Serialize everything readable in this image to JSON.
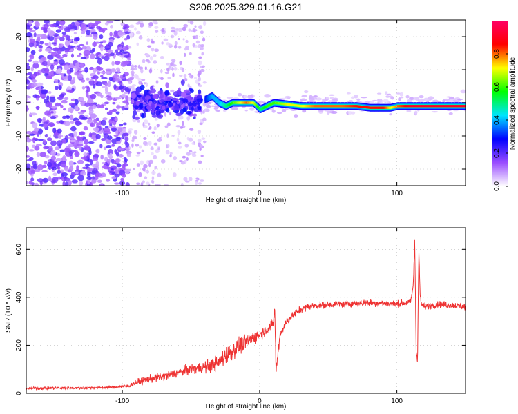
{
  "chart_data": [
    {
      "type": "heatmap",
      "title": "S206.2025.329.01.16.G21",
      "xlabel": "Height of straight line (km)",
      "ylabel": "Frequency (Hz)",
      "xlim": [
        -170,
        150
      ],
      "ylim": [
        -25,
        25
      ],
      "xticks": [
        -100,
        0,
        100
      ],
      "yticks": [
        -20,
        -10,
        0,
        10,
        20
      ],
      "colorbar": {
        "label": "Normalized spectral amplitude",
        "range": [
          0.0,
          1.0
        ],
        "ticks": [
          0.0,
          0.2,
          0.4,
          0.6,
          0.8
        ],
        "tick_labels": [
          "0.0",
          "0.2",
          "0.4",
          "0.6",
          "0.8"
        ],
        "colors": [
          "#ffffff",
          "#9a4dff",
          "#0000ff",
          "#00e5ff",
          "#00ff00",
          "#ffff00",
          "#ff0000",
          "#ff0066"
        ]
      },
      "ridge": {
        "x": [
          -40,
          -35,
          -30,
          -25,
          -20,
          -15,
          -10,
          -5,
          0,
          5,
          10,
          20,
          30,
          40,
          50,
          60,
          70,
          80,
          90,
          95,
          100,
          105,
          110,
          115,
          120,
          130,
          140,
          150
        ],
        "freq": [
          1.0,
          2.0,
          0.0,
          -1.0,
          0.0,
          0.0,
          0.0,
          0.0,
          -2.0,
          -1.0,
          0.0,
          -0.5,
          -1.0,
          -1.0,
          -1.0,
          -1.0,
          -1.0,
          -1.5,
          -1.5,
          -1.5,
          -1.0,
          -1.0,
          -1.0,
          -1.0,
          -1.0,
          -1.0,
          -1.0,
          -1.0
        ],
        "amplitude": [
          0.3,
          0.4,
          0.4,
          0.5,
          0.6,
          0.7,
          0.8,
          0.7,
          0.5,
          0.6,
          0.6,
          0.7,
          0.7,
          0.8,
          0.8,
          0.8,
          0.85,
          0.85,
          0.85,
          0.7,
          0.8,
          0.85,
          0.9,
          0.9,
          0.9,
          0.9,
          0.9,
          0.9
        ]
      }
    },
    {
      "type": "line",
      "xlabel": "Height of straight line (km)",
      "ylabel": "SNR (10 * v/v)",
      "xlim": [
        -170,
        150
      ],
      "ylim": [
        0,
        690
      ],
      "xticks": [
        -100,
        0,
        100
      ],
      "yticks": [
        0,
        200,
        400,
        600
      ],
      "series": [
        {
          "name": "SNR",
          "color": "#ee3333",
          "x": [
            -170,
            -150,
            -130,
            -110,
            -95,
            -90,
            -80,
            -70,
            -60,
            -50,
            -40,
            -30,
            -25,
            -20,
            -15,
            -10,
            -5,
            0,
            5,
            10,
            11,
            12,
            15,
            20,
            25,
            30,
            35,
            40,
            50,
            60,
            70,
            80,
            90,
            100,
            110,
            112,
            113,
            114,
            115,
            116,
            117,
            118,
            120,
            125,
            130,
            140,
            150
          ],
          "y": [
            20,
            22,
            22,
            25,
            30,
            45,
            60,
            70,
            85,
            100,
            110,
            125,
            160,
            175,
            195,
            215,
            230,
            245,
            265,
            290,
            360,
            90,
            250,
            300,
            330,
            350,
            360,
            365,
            370,
            372,
            375,
            378,
            375,
            372,
            380,
            450,
            650,
            180,
            130,
            600,
            400,
            370,
            360,
            365,
            370,
            368,
            360
          ],
          "noise": [
            8,
            8,
            8,
            8,
            10,
            18,
            22,
            25,
            28,
            32,
            35,
            45,
            55,
            50,
            50,
            45,
            40,
            35,
            30,
            30,
            30,
            30,
            28,
            25,
            22,
            20,
            20,
            20,
            20,
            20,
            20,
            20,
            20,
            20,
            20,
            20,
            20,
            20,
            20,
            20,
            20,
            20,
            20,
            20,
            20,
            20,
            20
          ]
        }
      ]
    }
  ]
}
